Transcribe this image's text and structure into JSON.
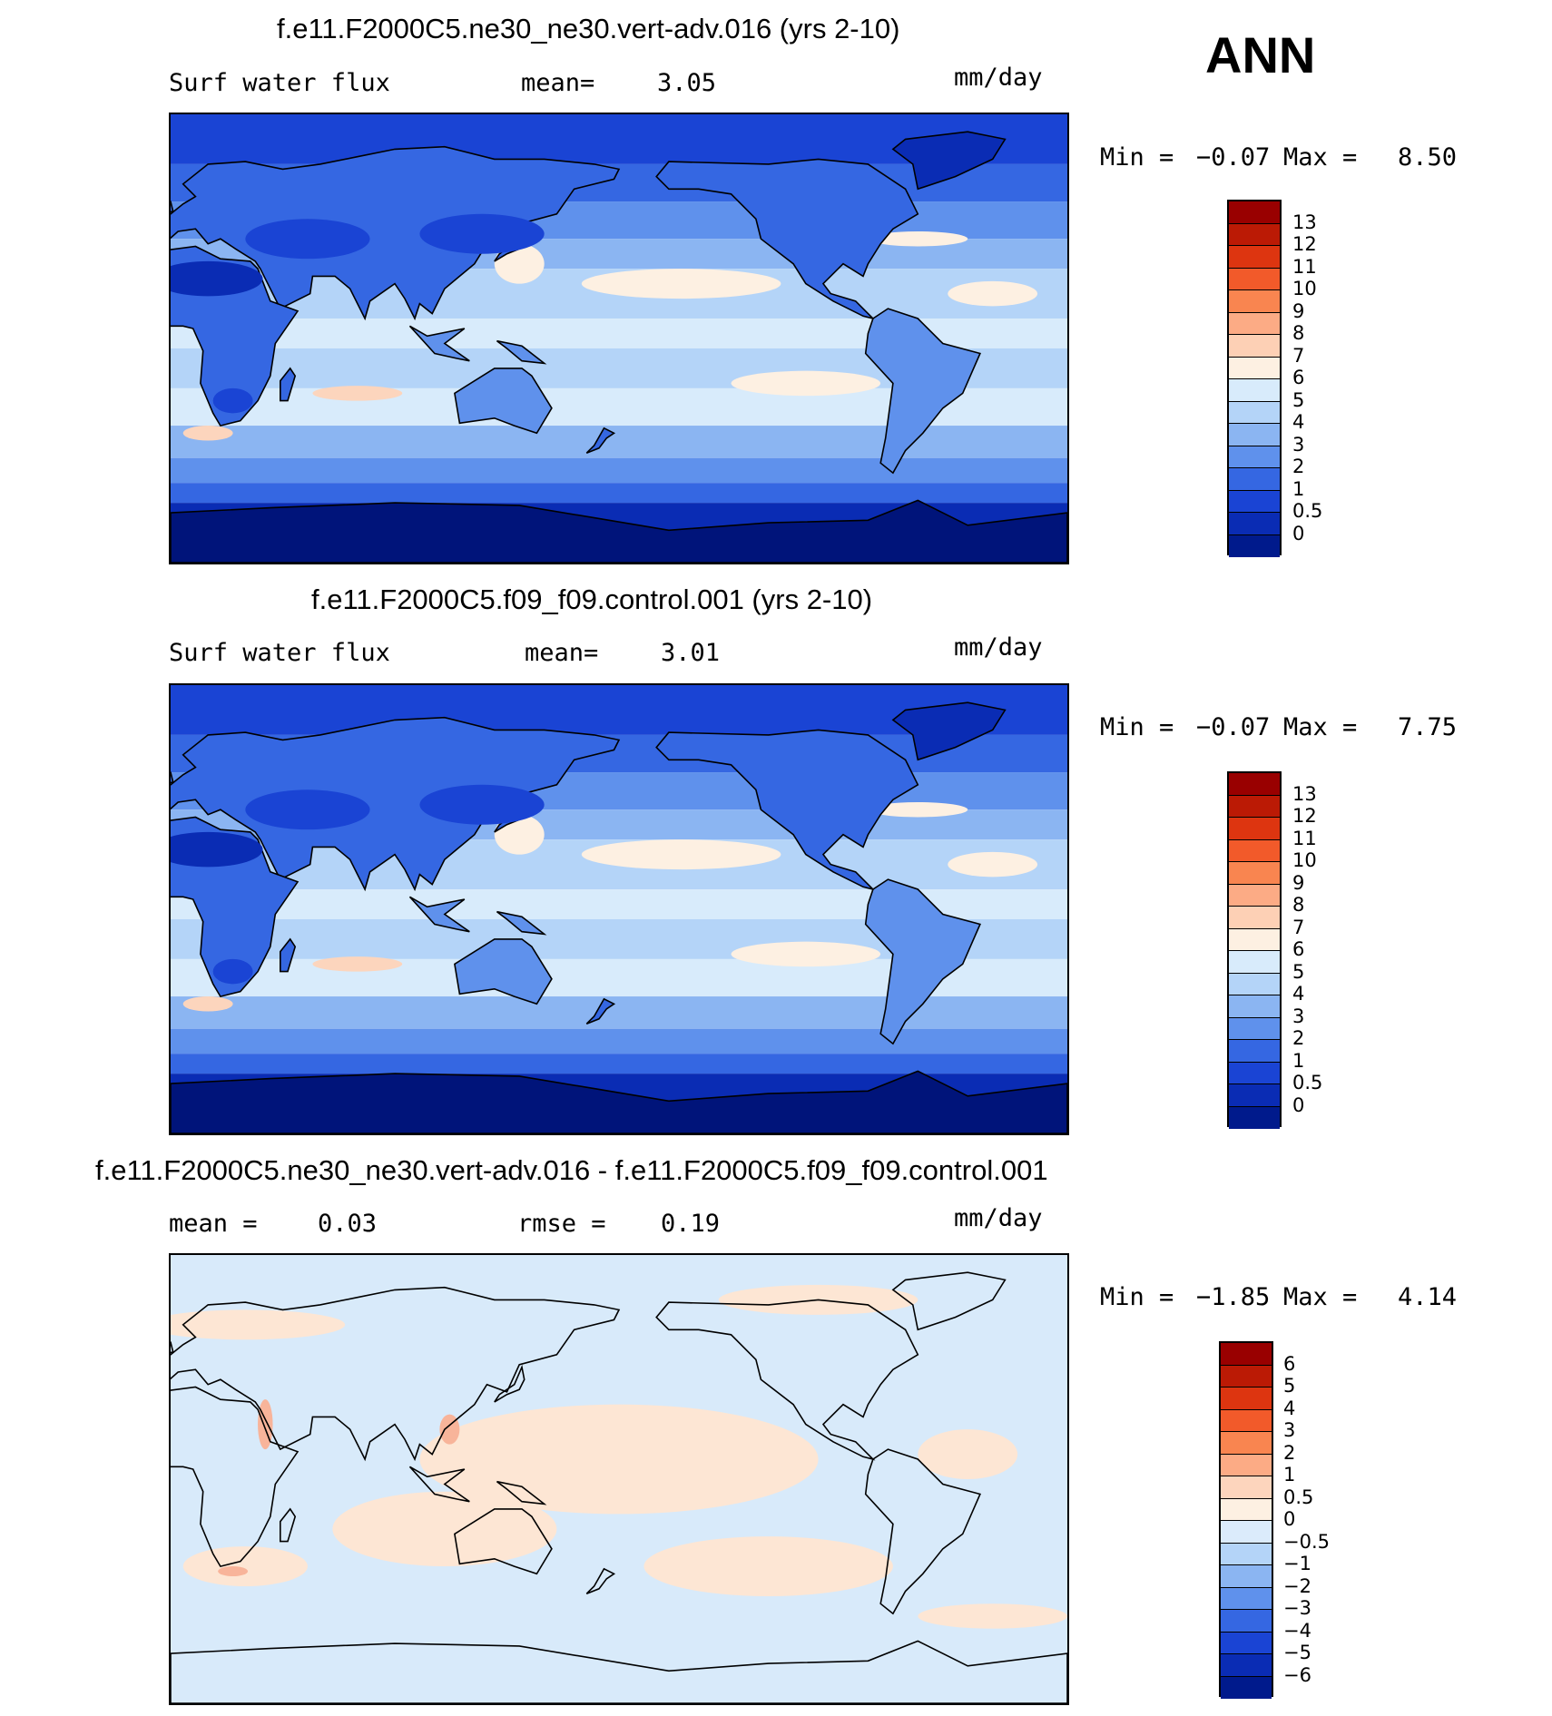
{
  "season": "ANN",
  "unit": "mm/day",
  "panels": [
    {
      "title": "f.e11.F2000C5.ne30_ne30.vert-adv.016 (yrs 2-10)",
      "field": "Surf water flux",
      "stat_label": "mean=",
      "stat_value": "3.05",
      "min_label": "Min =",
      "min_value": "−0.07",
      "max_label": "Max =",
      "max_value": "8.50",
      "colorbar": {
        "labels": [
          "13",
          "12",
          "11",
          "10",
          "9",
          "8",
          "7",
          "6",
          "5",
          "4",
          "3",
          "2",
          "1",
          "0.5",
          "0"
        ],
        "colors": [
          "#990000",
          "#bb1a05",
          "#dd3510",
          "#f25a2a",
          "#f98550",
          "#fcab85",
          "#fdd0b5",
          "#fdf0e2",
          "#d8ebfb",
          "#b4d4f8",
          "#8bb5f2",
          "#5f91ec",
          "#3567e2",
          "#1a44d4",
          "#0a2cb4",
          "#001a8c"
        ]
      }
    },
    {
      "title": "f.e11.F2000C5.f09_f09.control.001 (yrs 2-10)",
      "field": "Surf water flux",
      "stat_label": "mean=",
      "stat_value": "3.01",
      "min_label": "Min =",
      "min_value": "−0.07",
      "max_label": "Max =",
      "max_value": "7.75",
      "colorbar": {
        "labels": [
          "13",
          "12",
          "11",
          "10",
          "9",
          "8",
          "7",
          "6",
          "5",
          "4",
          "3",
          "2",
          "1",
          "0.5",
          "0"
        ],
        "colors": [
          "#990000",
          "#bb1a05",
          "#dd3510",
          "#f25a2a",
          "#f98550",
          "#fcab85",
          "#fdd0b5",
          "#fdf0e2",
          "#d8ebfb",
          "#b4d4f8",
          "#8bb5f2",
          "#5f91ec",
          "#3567e2",
          "#1a44d4",
          "#0a2cb4",
          "#001a8c"
        ]
      }
    },
    {
      "title": "f.e11.F2000C5.ne30_ne30.vert-adv.016 - f.e11.F2000C5.f09_f09.control.001",
      "field_label": "mean =",
      "field_value": "0.03",
      "stat_label": "rmse =",
      "stat_value": "0.19",
      "min_label": "Min =",
      "min_value": "−1.85",
      "max_label": "Max =",
      "max_value": "4.14",
      "colorbar": {
        "labels": [
          "6",
          "5",
          "4",
          "3",
          "2",
          "1",
          "0.5",
          "0",
          "−0.5",
          "−1",
          "−2",
          "−3",
          "−4",
          "−5",
          "−6"
        ],
        "colors": [
          "#990000",
          "#bb1a05",
          "#dd3510",
          "#f25a2a",
          "#f98550",
          "#fcab85",
          "#fdd5bd",
          "#fdf0e2",
          "#dbebfb",
          "#b4d4f8",
          "#8bb5f2",
          "#5f91ec",
          "#3567e2",
          "#1a44d4",
          "#0a2cb4",
          "#001a8c"
        ]
      }
    }
  ],
  "map_colors": {
    "deep": "#00147a",
    "dark": "#0a2cb4",
    "mid": "#1a44d4",
    "med": "#3567e2",
    "light": "#5f91ec",
    "lighter": "#8bb5f2",
    "pale": "#b4d4f8",
    "palest": "#d8ebfb",
    "cream": "#fdf0e2",
    "peach": "#fcd5bd",
    "coast": "#000000",
    "diff_neg": "#d8eafa",
    "diff_pos": "#fde6d4",
    "diff_pos2": "#f8b49a"
  }
}
